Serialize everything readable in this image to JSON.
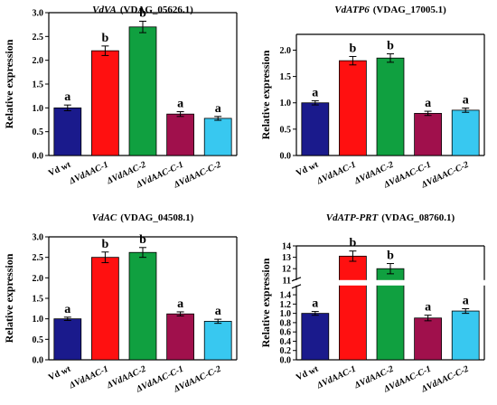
{
  "chart_data": [
    {
      "type": "bar",
      "title_gene": "VdVA",
      "title_id": "(VDAG_05626.1)",
      "ylabel": "Relative expression",
      "categories": [
        "Vd wt",
        "ΔVdAAC-1",
        "ΔVdAAC-2",
        "ΔVdAAC-C-1",
        "ΔVdAAC-C-2"
      ],
      "values": [
        1.0,
        2.2,
        2.7,
        0.87,
        0.78
      ],
      "errors": [
        0.06,
        0.1,
        0.12,
        0.05,
        0.04
      ],
      "significance": [
        "a",
        "b",
        "b",
        "a",
        "a"
      ],
      "colors": [
        "#1a1a8c",
        "#ff1010",
        "#10a040",
        "#a0104c",
        "#38c8f0"
      ],
      "ylim": [
        0,
        3.0
      ],
      "yticks": [
        "0.0",
        "0.5",
        "1.0",
        "1.5",
        "2.0",
        "2.5",
        "3.0"
      ]
    },
    {
      "type": "bar",
      "title_gene": "VdATP6",
      "title_id": "(VDAG_17005.1)",
      "ylabel": "Relative expression",
      "categories": [
        "Vd wt",
        "ΔVdAAC-1",
        "ΔVdAAC-2",
        "ΔVdAAC-C-1",
        "ΔVdAAC-C-2"
      ],
      "values": [
        1.0,
        1.8,
        1.85,
        0.8,
        0.86
      ],
      "errors": [
        0.04,
        0.08,
        0.08,
        0.04,
        0.04
      ],
      "significance": [
        "a",
        "b",
        "b",
        "a",
        "a"
      ],
      "colors": [
        "#1a1a8c",
        "#ff1010",
        "#10a040",
        "#a0104c",
        "#38c8f0"
      ],
      "ylim": [
        0,
        2.3
      ],
      "yticks": [
        "0.0",
        "0.5",
        "1.0",
        "1.5",
        "2.0"
      ]
    },
    {
      "type": "bar",
      "title_gene": "VdAC",
      "title_id": "(VDAG_04508.1)",
      "ylabel": "Relative expression",
      "categories": [
        "Vd wt",
        "ΔVdAAC-1",
        "ΔVdAAC-2",
        "ΔVdAAC-C-1",
        "ΔVdAAC-C-2"
      ],
      "values": [
        1.0,
        2.5,
        2.62,
        1.12,
        0.94
      ],
      "errors": [
        0.04,
        0.13,
        0.12,
        0.05,
        0.05
      ],
      "significance": [
        "a",
        "b",
        "b",
        "a",
        "a"
      ],
      "colors": [
        "#1a1a8c",
        "#ff1010",
        "#10a040",
        "#a0104c",
        "#38c8f0"
      ],
      "ylim": [
        0,
        3.0
      ],
      "yticks": [
        "0.0",
        "0.5",
        "1.0",
        "1.5",
        "2.0",
        "2.5",
        "3.0"
      ]
    },
    {
      "type": "bar",
      "title_gene": "VdATP-PRT",
      "title_id": "(VDAG_08760.1)",
      "ylabel": "Relative expression",
      "categories": [
        "Vd wt",
        "ΔVdAAC-1",
        "ΔVdAAC-2",
        "ΔVdAAC-C-1",
        "ΔVdAAC-C-2"
      ],
      "values": [
        1.0,
        13.1,
        12.0,
        0.9,
        1.05
      ],
      "errors": [
        0.04,
        0.45,
        0.45,
        0.06,
        0.05
      ],
      "significance": [
        "a",
        "b",
        "b",
        "a",
        "a"
      ],
      "colors": [
        "#1a1a8c",
        "#ff1010",
        "#10a040",
        "#a0104c",
        "#38c8f0"
      ],
      "axis_break": true,
      "lower_ylim": [
        0,
        1.6
      ],
      "upper_ylim": [
        11,
        14
      ],
      "lower_yticks": [
        "0.0",
        "0.2",
        "0.4",
        "0.6",
        "0.8",
        "1.0",
        "1.2",
        "1.4"
      ],
      "upper_yticks": [
        "11",
        "12",
        "13",
        "14"
      ]
    }
  ]
}
